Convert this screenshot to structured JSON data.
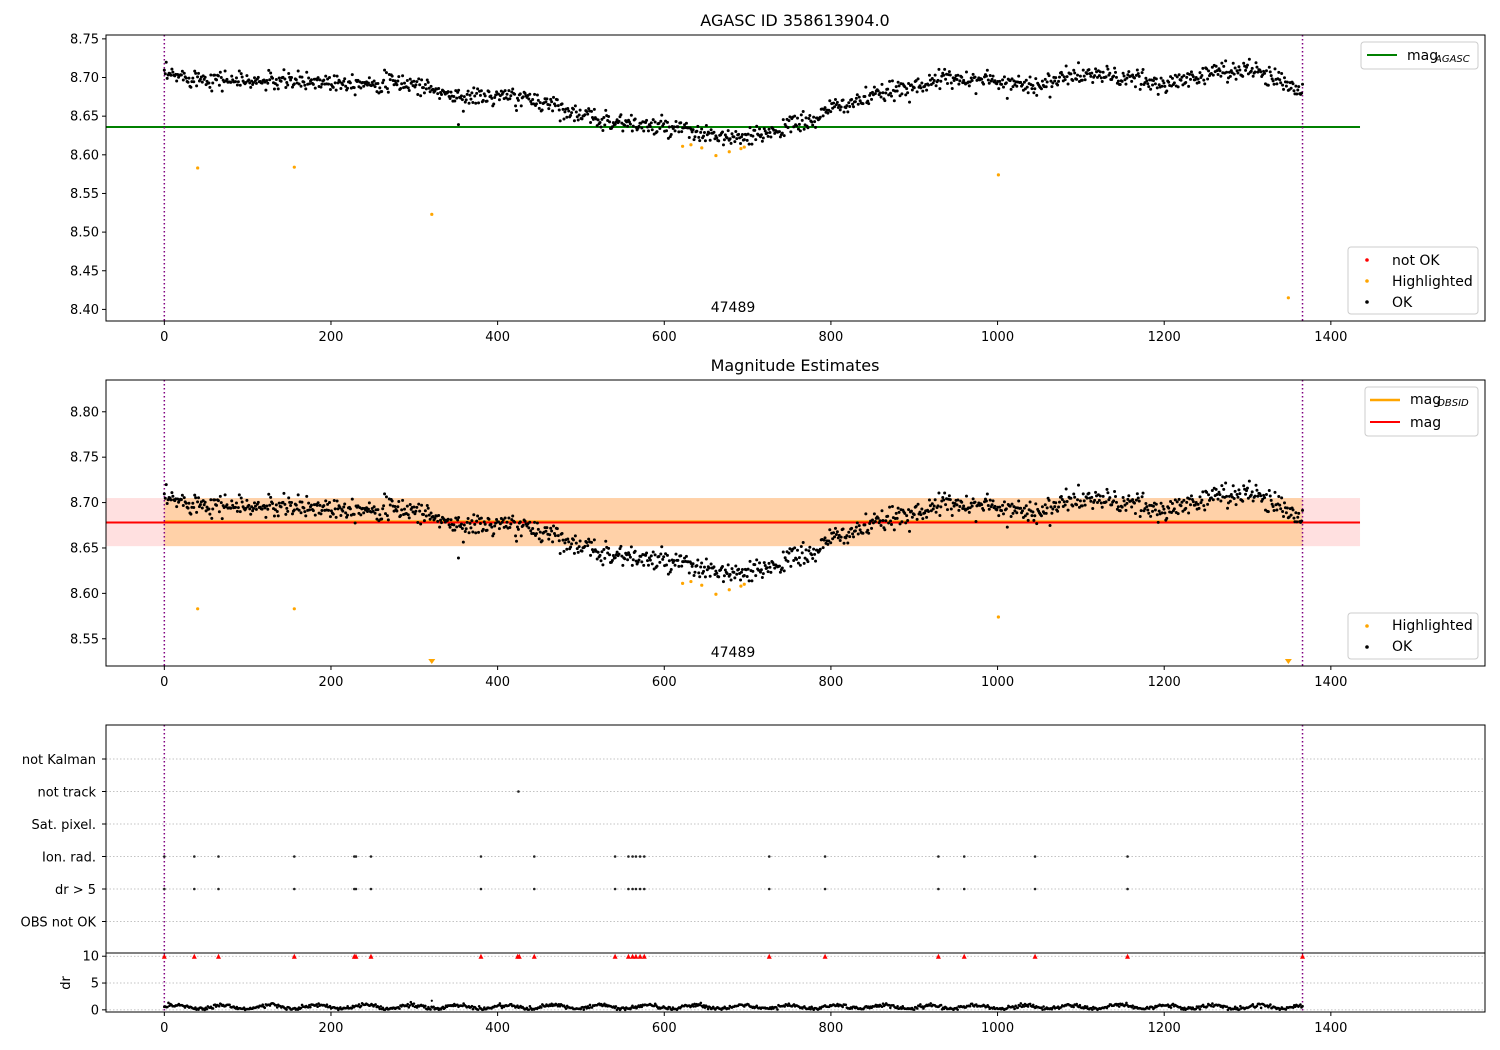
{
  "chart_data": [
    {
      "type": "scatter",
      "title": "AGASC ID 358613904.0",
      "xlim": [
        -70,
        1585
      ],
      "ylim": [
        8.385,
        8.755
      ],
      "xticks": [
        0,
        200,
        400,
        600,
        800,
        1000,
        1200,
        1400
      ],
      "yticks": [
        8.4,
        8.45,
        8.5,
        8.55,
        8.6,
        8.65,
        8.7,
        8.75
      ],
      "ytick_labels": [
        "8.40",
        "8.45",
        "8.50",
        "8.55",
        "8.60",
        "8.65",
        "8.70",
        "8.75"
      ],
      "annotation": {
        "text": "47489",
        "x": 685,
        "y": 8.395
      },
      "vlines": [
        0,
        1366
      ],
      "hline": {
        "name": "mag_AGASC",
        "value": 8.636,
        "xmax": 1435,
        "color": "#008000"
      },
      "ok_profile": [
        [
          0,
          8.703
        ],
        [
          100,
          8.695
        ],
        [
          200,
          8.695
        ],
        [
          300,
          8.692
        ],
        [
          350,
          8.675
        ],
        [
          420,
          8.675
        ],
        [
          470,
          8.665
        ],
        [
          500,
          8.65
        ],
        [
          560,
          8.64
        ],
        [
          620,
          8.632
        ],
        [
          650,
          8.625
        ],
        [
          700,
          8.62
        ],
        [
          740,
          8.635
        ],
        [
          780,
          8.645
        ],
        [
          800,
          8.66
        ],
        [
          850,
          8.675
        ],
        [
          900,
          8.69
        ],
        [
          950,
          8.7
        ],
        [
          1000,
          8.695
        ],
        [
          1050,
          8.69
        ],
        [
          1100,
          8.705
        ],
        [
          1150,
          8.7
        ],
        [
          1200,
          8.69
        ],
        [
          1250,
          8.705
        ],
        [
          1300,
          8.712
        ],
        [
          1330,
          8.7
        ],
        [
          1366,
          8.685
        ]
      ],
      "ok_scatter": 0.006,
      "highlighted_points": [
        [
          40,
          8.583
        ],
        [
          156,
          8.584
        ],
        [
          321,
          8.523
        ],
        [
          622,
          8.611
        ],
        [
          632,
          8.613
        ],
        [
          645,
          8.609
        ],
        [
          662,
          8.599
        ],
        [
          678,
          8.604
        ],
        [
          692,
          8.608
        ],
        [
          696,
          8.61
        ],
        [
          1001,
          8.574
        ],
        [
          1349,
          8.415
        ]
      ],
      "notok_points": [],
      "legend_upper": [
        {
          "label": "mag",
          "sub": "AGASC",
          "color": "#008000"
        }
      ],
      "legend_lower": [
        {
          "label": "not OK",
          "color": "#ff0000"
        },
        {
          "label": "Highlighted",
          "color": "#ffa500"
        },
        {
          "label": "OK",
          "color": "#000000"
        }
      ]
    },
    {
      "type": "scatter",
      "title": "Magnitude Estimates",
      "xlim": [
        -70,
        1585
      ],
      "ylim": [
        8.52,
        8.835
      ],
      "xticks": [
        0,
        200,
        400,
        600,
        800,
        1000,
        1200,
        1400
      ],
      "yticks": [
        8.55,
        8.6,
        8.65,
        8.7,
        8.75,
        8.8
      ],
      "ytick_labels": [
        "8.55",
        "8.60",
        "8.65",
        "8.70",
        "8.75",
        "8.80"
      ],
      "annotation": {
        "text": "47489",
        "x": 685,
        "y": 8.533
      },
      "vlines": [
        0,
        1366
      ],
      "band_mag": {
        "value": 8.678,
        "low": 8.652,
        "high": 8.705,
        "xmin": -70,
        "xmax": 1435,
        "color": "#ff0000"
      },
      "band_obsid": {
        "value": 8.679,
        "low": 8.652,
        "high": 8.705,
        "xmin": 0,
        "xmax": 1366,
        "color": "#ffa500"
      },
      "highlighted_points": [
        [
          40,
          8.583
        ],
        [
          156,
          8.583
        ],
        [
          622,
          8.611
        ],
        [
          632,
          8.613
        ],
        [
          645,
          8.609
        ],
        [
          662,
          8.599
        ],
        [
          678,
          8.604
        ],
        [
          692,
          8.608
        ],
        [
          696,
          8.61
        ],
        [
          1001,
          8.574
        ]
      ],
      "clipped_points": [
        321,
        1349
      ],
      "legend_upper": [
        {
          "label": "mag",
          "sub": "OBSID",
          "color": "#ffa500"
        },
        {
          "label": "mag",
          "sub": "",
          "color": "#ff0000"
        }
      ],
      "legend_lower": [
        {
          "label": "Highlighted",
          "color": "#ffa500"
        },
        {
          "label": "OK",
          "color": "#000000"
        }
      ]
    },
    {
      "type": "scatter",
      "xlim": [
        -70,
        1585
      ],
      "xticks": [
        0,
        200,
        400,
        600,
        800,
        1000,
        1200,
        1400
      ],
      "flag_labels": [
        "not Kalman",
        "not track",
        "Sat. pixel.",
        "Ion. rad.",
        "dr > 5",
        "OBS not OK"
      ],
      "flag_points": {
        "not track": [
          425
        ],
        "Ion. rad.": [
          0,
          36,
          65,
          156,
          228,
          230,
          248,
          380,
          444,
          541,
          557,
          562,
          566,
          571,
          576,
          726,
          793,
          929,
          960,
          1045,
          1156
        ],
        "dr > 5": [
          0,
          36,
          65,
          156,
          228,
          230,
          248,
          380,
          444,
          541,
          557,
          562,
          566,
          571,
          576,
          726,
          793,
          929,
          960,
          1045,
          1156
        ]
      },
      "dr_ylim": [
        -0.4,
        10.6
      ],
      "dr_yticks": [
        0,
        5,
        10
      ],
      "dr_ylabel": "dr",
      "dr_capped": [
        0,
        36,
        65,
        156,
        228,
        230,
        248,
        380,
        424,
        426,
        444,
        541,
        557,
        562,
        566,
        571,
        576,
        726,
        793,
        929,
        960,
        1045,
        1156,
        1366
      ],
      "vlines": [
        0,
        1366
      ]
    }
  ]
}
